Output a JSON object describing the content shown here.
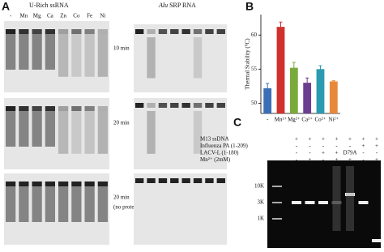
{
  "panel_a": {
    "label": "A",
    "left_title": "U-Rich ssRNA",
    "right_title_italic": "Alu",
    "right_title_rest": "SRP RNA",
    "lanes": [
      "-",
      "Mn",
      "Mg",
      "Ca",
      "Zn",
      "Co",
      "Fe",
      "Ni"
    ],
    "times": [
      "10 min",
      "20 min",
      "20 min"
    ],
    "no_protein": "(no protein)"
  },
  "panel_b_label": "B",
  "chart_data": {
    "type": "bar",
    "y_label": "Thermal Stability (⁰C)",
    "categories": [
      "-",
      "Mn²⁺",
      "Mg²⁺",
      "Ca²⁺",
      "Co²⁺",
      "Ni²⁺"
    ],
    "values": [
      52.2,
      61.2,
      55.2,
      53.0,
      55.0,
      53.2
    ],
    "errors": [
      0.7,
      0.7,
      0.8,
      0.7,
      0.5,
      0.1
    ],
    "colors": [
      "#3a6fb5",
      "#d0312d",
      "#7aaa3b",
      "#6b3f8f",
      "#2a9bb0",
      "#e8893a"
    ],
    "ylim": [
      48.5,
      63
    ],
    "yticks": [
      50,
      55,
      60
    ]
  },
  "panel_c": {
    "label": "C",
    "rows": [
      {
        "name": "M13 ssDNA",
        "cells": [
          "+",
          "+",
          "+",
          "+",
          "+",
          "+",
          "+"
        ]
      },
      {
        "name": "Influenza PA (1-209)",
        "cells": [
          "-",
          "-",
          "-",
          "-",
          "-",
          "+",
          "+"
        ]
      },
      {
        "name": "LACV-L (1-180)",
        "cells": [
          "-",
          "-",
          "+",
          "+",
          "D79A",
          "-",
          "-"
        ]
      },
      {
        "name": "Mn²⁺ (2mM)",
        "cells": [
          "-",
          "+",
          "-",
          "+",
          "+",
          "-",
          "+"
        ]
      }
    ],
    "markers": [
      "10K",
      "3K",
      "1K"
    ]
  }
}
